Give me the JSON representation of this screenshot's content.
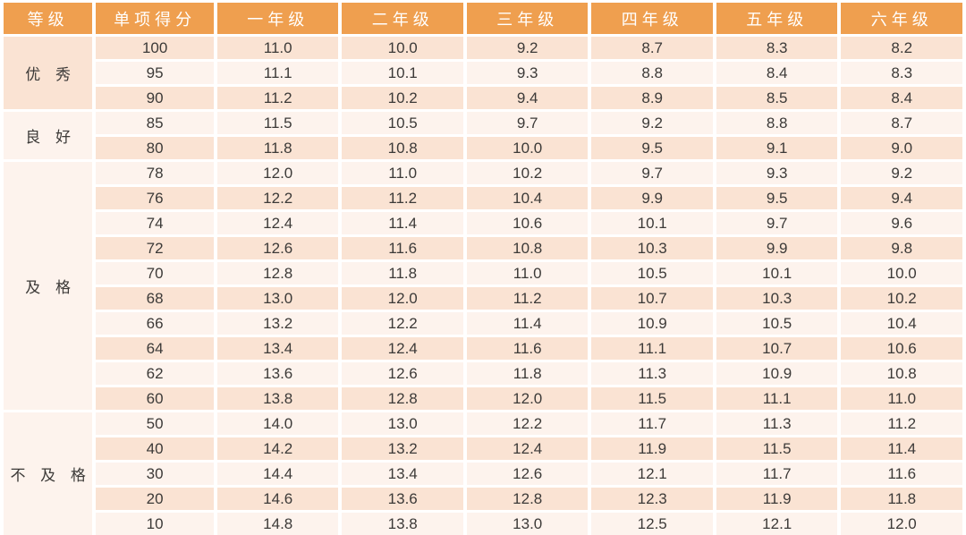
{
  "colors": {
    "header_bg": "#EF9F4F",
    "header_text": "#FFFFFF",
    "band_dark": "#FAE3D3",
    "band_light": "#FDF3ED",
    "cell_text": "#3C3A38",
    "grid_line": "#FFFFFF"
  },
  "chart_data": {
    "type": "table",
    "title": "",
    "columns": [
      "等级",
      "单项得分",
      "一年级",
      "二年级",
      "三年级",
      "四年级",
      "五年级",
      "六年级"
    ],
    "layout": {
      "banded_rows": true,
      "first_band": "dark",
      "grade_column_merged_by_group": true,
      "grid": "white-separators"
    },
    "groups": [
      {
        "grade": "优 秀",
        "rows": [
          {
            "score": "100",
            "values": [
              "11.0",
              "10.0",
              "9.2",
              "8.7",
              "8.3",
              "8.2"
            ]
          },
          {
            "score": "95",
            "values": [
              "11.1",
              "10.1",
              "9.3",
              "8.8",
              "8.4",
              "8.3"
            ]
          },
          {
            "score": "90",
            "values": [
              "11.2",
              "10.2",
              "9.4",
              "8.9",
              "8.5",
              "8.4"
            ]
          }
        ]
      },
      {
        "grade": "良 好",
        "rows": [
          {
            "score": "85",
            "values": [
              "11.5",
              "10.5",
              "9.7",
              "9.2",
              "8.8",
              "8.7"
            ]
          },
          {
            "score": "80",
            "values": [
              "11.8",
              "10.8",
              "10.0",
              "9.5",
              "9.1",
              "9.0"
            ]
          }
        ]
      },
      {
        "grade": "及 格",
        "rows": [
          {
            "score": "78",
            "values": [
              "12.0",
              "11.0",
              "10.2",
              "9.7",
              "9.3",
              "9.2"
            ]
          },
          {
            "score": "76",
            "values": [
              "12.2",
              "11.2",
              "10.4",
              "9.9",
              "9.5",
              "9.4"
            ]
          },
          {
            "score": "74",
            "values": [
              "12.4",
              "11.4",
              "10.6",
              "10.1",
              "9.7",
              "9.6"
            ]
          },
          {
            "score": "72",
            "values": [
              "12.6",
              "11.6",
              "10.8",
              "10.3",
              "9.9",
              "9.8"
            ]
          },
          {
            "score": "70",
            "values": [
              "12.8",
              "11.8",
              "11.0",
              "10.5",
              "10.1",
              "10.0"
            ]
          },
          {
            "score": "68",
            "values": [
              "13.0",
              "12.0",
              "11.2",
              "10.7",
              "10.3",
              "10.2"
            ]
          },
          {
            "score": "66",
            "values": [
              "13.2",
              "12.2",
              "11.4",
              "10.9",
              "10.5",
              "10.4"
            ]
          },
          {
            "score": "64",
            "values": [
              "13.4",
              "12.4",
              "11.6",
              "11.1",
              "10.7",
              "10.6"
            ]
          },
          {
            "score": "62",
            "values": [
              "13.6",
              "12.6",
              "11.8",
              "11.3",
              "10.9",
              "10.8"
            ]
          },
          {
            "score": "60",
            "values": [
              "13.8",
              "12.8",
              "12.0",
              "11.5",
              "11.1",
              "11.0"
            ]
          }
        ]
      },
      {
        "grade": "不 及 格",
        "rows": [
          {
            "score": "50",
            "values": [
              "14.0",
              "13.0",
              "12.2",
              "11.7",
              "11.3",
              "11.2"
            ]
          },
          {
            "score": "40",
            "values": [
              "14.2",
              "13.2",
              "12.4",
              "11.9",
              "11.5",
              "11.4"
            ]
          },
          {
            "score": "30",
            "values": [
              "14.4",
              "13.4",
              "12.6",
              "12.1",
              "11.7",
              "11.6"
            ]
          },
          {
            "score": "20",
            "values": [
              "14.6",
              "13.6",
              "12.8",
              "12.3",
              "11.9",
              "11.8"
            ]
          },
          {
            "score": "10",
            "values": [
              "14.8",
              "13.8",
              "13.0",
              "12.5",
              "12.1",
              "12.0"
            ]
          }
        ]
      }
    ]
  }
}
